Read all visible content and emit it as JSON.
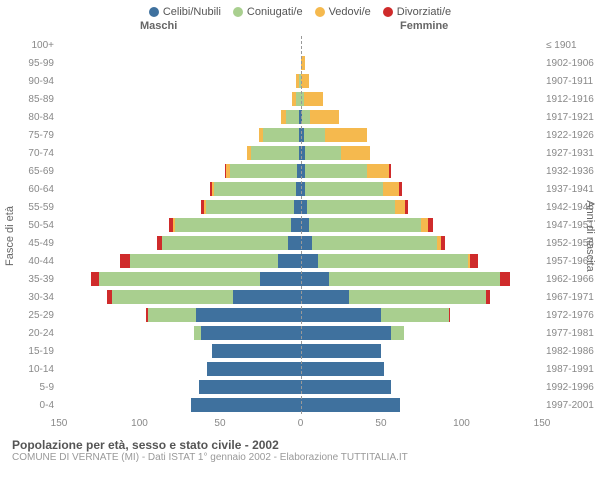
{
  "legend": [
    {
      "label": "Celibi/Nubili",
      "color": "#3f719e"
    },
    {
      "label": "Coniugati/e",
      "color": "#a9cf8f"
    },
    {
      "label": "Vedovi/e",
      "color": "#f5b94e"
    },
    {
      "label": "Divorziati/e",
      "color": "#cf2b2b"
    }
  ],
  "header_left": "Maschi",
  "header_right": "Femmine",
  "axis_left_title": "Fasce di età",
  "axis_right_title": "Anni di nascita",
  "title": "Popolazione per età, sesso e stato civile - 2002",
  "subtitle": "COMUNE DI VERNATE (MI) - Dati ISTAT 1° gennaio 2002 - Elaborazione TUTTITALIA.IT",
  "xmax": 150,
  "xticks": [
    150,
    100,
    50,
    0,
    50,
    100,
    150
  ],
  "colors": {
    "single": "#3f719e",
    "married": "#a9cf8f",
    "widowed": "#f5b94e",
    "divorced": "#cf2b2b",
    "grid": "#e9e9e9",
    "bg": "#ffffff"
  },
  "rows": [
    {
      "age": "100+",
      "birth": "≤ 1901",
      "m": [
        0,
        0,
        0,
        0
      ],
      "f": [
        0,
        0,
        0,
        0
      ]
    },
    {
      "age": "95-99",
      "birth": "1902-1906",
      "m": [
        0,
        0,
        0,
        0
      ],
      "f": [
        0,
        0,
        3,
        0
      ]
    },
    {
      "age": "90-94",
      "birth": "1907-1911",
      "m": [
        0,
        1,
        2,
        0
      ],
      "f": [
        0,
        0,
        5,
        0
      ]
    },
    {
      "age": "85-89",
      "birth": "1912-1916",
      "m": [
        0,
        3,
        2,
        0
      ],
      "f": [
        0,
        2,
        12,
        0
      ]
    },
    {
      "age": "80-84",
      "birth": "1917-1921",
      "m": [
        1,
        8,
        3,
        0
      ],
      "f": [
        1,
        5,
        18,
        0
      ]
    },
    {
      "age": "75-79",
      "birth": "1922-1926",
      "m": [
        1,
        22,
        3,
        0
      ],
      "f": [
        2,
        13,
        26,
        0
      ]
    },
    {
      "age": "70-74",
      "birth": "1927-1931",
      "m": [
        1,
        30,
        2,
        0
      ],
      "f": [
        3,
        22,
        18,
        0
      ]
    },
    {
      "age": "65-69",
      "birth": "1932-1936",
      "m": [
        2,
        42,
        2,
        1
      ],
      "f": [
        3,
        38,
        14,
        1
      ]
    },
    {
      "age": "60-64",
      "birth": "1937-1941",
      "m": [
        3,
        51,
        1,
        1
      ],
      "f": [
        3,
        48,
        10,
        2
      ]
    },
    {
      "age": "55-59",
      "birth": "1942-1946",
      "m": [
        4,
        55,
        1,
        2
      ],
      "f": [
        4,
        55,
        6,
        2
      ]
    },
    {
      "age": "50-54",
      "birth": "1947-1951",
      "m": [
        6,
        72,
        1,
        3
      ],
      "f": [
        5,
        70,
        4,
        3
      ]
    },
    {
      "age": "45-49",
      "birth": "1952-1956",
      "m": [
        8,
        78,
        0,
        3
      ],
      "f": [
        7,
        78,
        2,
        3
      ]
    },
    {
      "age": "40-44",
      "birth": "1957-1961",
      "m": [
        14,
        92,
        0,
        6
      ],
      "f": [
        11,
        93,
        1,
        5
      ]
    },
    {
      "age": "35-39",
      "birth": "1962-1966",
      "m": [
        25,
        100,
        0,
        5
      ],
      "f": [
        18,
        106,
        0,
        6
      ]
    },
    {
      "age": "30-34",
      "birth": "1967-1971",
      "m": [
        42,
        75,
        0,
        3
      ],
      "f": [
        30,
        85,
        0,
        3
      ]
    },
    {
      "age": "25-29",
      "birth": "1972-1976",
      "m": [
        65,
        30,
        0,
        1
      ],
      "f": [
        50,
        42,
        0,
        1
      ]
    },
    {
      "age": "20-24",
      "birth": "1977-1981",
      "m": [
        62,
        4,
        0,
        0
      ],
      "f": [
        56,
        8,
        0,
        0
      ]
    },
    {
      "age": "15-19",
      "birth": "1982-1986",
      "m": [
        55,
        0,
        0,
        0
      ],
      "f": [
        50,
        0,
        0,
        0
      ]
    },
    {
      "age": "10-14",
      "birth": "1987-1991",
      "m": [
        58,
        0,
        0,
        0
      ],
      "f": [
        52,
        0,
        0,
        0
      ]
    },
    {
      "age": "5-9",
      "birth": "1992-1996",
      "m": [
        63,
        0,
        0,
        0
      ],
      "f": [
        56,
        0,
        0,
        0
      ]
    },
    {
      "age": "0-4",
      "birth": "1997-2001",
      "m": [
        68,
        0,
        0,
        0
      ],
      "f": [
        62,
        0,
        0,
        0
      ]
    }
  ]
}
